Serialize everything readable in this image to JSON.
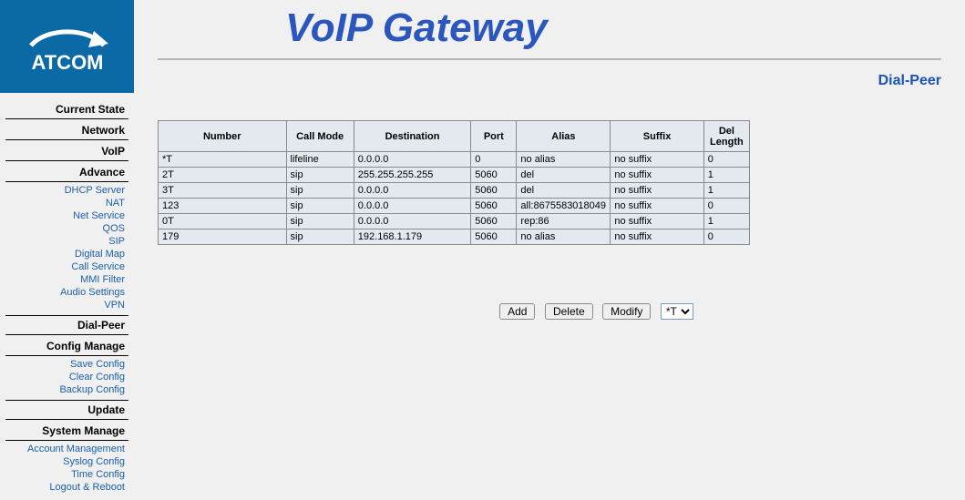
{
  "logo": {
    "text": "ATCOM"
  },
  "header": {
    "title": "VoIP Gateway",
    "page": "Dial-Peer"
  },
  "nav": {
    "sections": [
      {
        "label": "Current State",
        "items": []
      },
      {
        "label": "Network",
        "items": []
      },
      {
        "label": "VoIP",
        "items": []
      },
      {
        "label": "Advance",
        "items": [
          "DHCP Server",
          "NAT",
          "Net Service",
          "QOS",
          "SIP",
          "Digital Map",
          "Call Service",
          "MMI Filter",
          "Audio Settings",
          "VPN"
        ]
      },
      {
        "label": "Dial-Peer",
        "items": []
      },
      {
        "label": "Config Manage",
        "items": [
          "Save Config",
          "Clear Config",
          "Backup Config"
        ]
      },
      {
        "label": "Update",
        "items": []
      },
      {
        "label": "System Manage",
        "items": [
          "Account Management",
          "Syslog Config",
          "Time Config",
          "Logout & Reboot"
        ]
      }
    ]
  },
  "table": {
    "columns": [
      "Number",
      "Call Mode",
      "Destination",
      "Port",
      "Alias",
      "Suffix",
      "Del Length"
    ],
    "rows": [
      [
        "*T",
        "lifeline",
        "0.0.0.0",
        "0",
        "no alias",
        "no suffix",
        "0"
      ],
      [
        "2T",
        "sip",
        "255.255.255.255",
        "5060",
        "del",
        "no suffix",
        "1"
      ],
      [
        "3T",
        "sip",
        "0.0.0.0",
        "5060",
        "del",
        "no suffix",
        "1"
      ],
      [
        "123",
        "sip",
        "0.0.0.0",
        "5060",
        "all:8675583018049",
        "no suffix",
        "0"
      ],
      [
        "0T",
        "sip",
        "0.0.0.0",
        "5060",
        "rep:86",
        "no suffix",
        "1"
      ],
      [
        "179",
        "sip",
        "192.168.1.179",
        "5060",
        "no alias",
        "no suffix",
        "0"
      ]
    ]
  },
  "controls": {
    "add": "Add",
    "delete": "Delete",
    "modify": "Modify",
    "select_value": "*T"
  },
  "colors": {
    "brand_bg": "#0b6aa6",
    "title": "#2b56bd",
    "link": "#1a5fa8",
    "cell_bg": "#e3e9ef",
    "border": "#8a8a8a",
    "page_bg": "#f0f0f0"
  }
}
